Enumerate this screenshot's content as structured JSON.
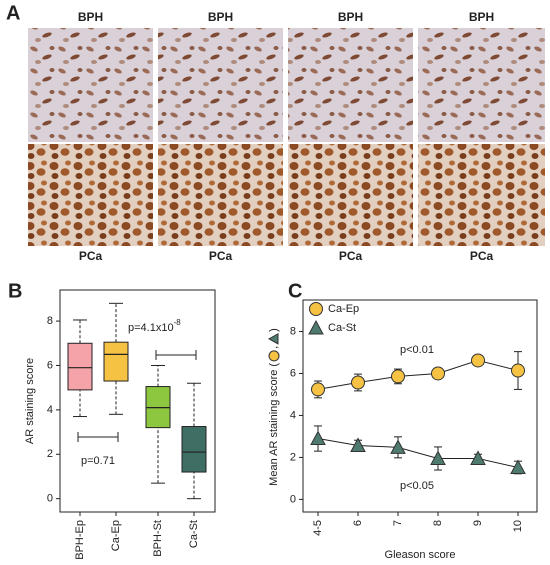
{
  "panel_labels": [
    "A",
    "B",
    "C"
  ],
  "panel_a": {
    "top_labels": [
      "BPH",
      "BPH",
      "BPH",
      "BPH"
    ],
    "bottom_labels": [
      "PCa",
      "PCa",
      "PCa",
      "PCa"
    ]
  },
  "chart_data": [
    {
      "type": "box",
      "ylabel": "AR staining score",
      "categories": [
        "BPH-Ep",
        "Ca-Ep",
        "BPH-St",
        "Ca-St"
      ],
      "colors": [
        "#f4a3a8",
        "#f6c244",
        "#8dc63f",
        "#3f6e65"
      ],
      "boxes": [
        {
          "whisker_low": 3.7,
          "q1": 4.9,
          "median": 5.9,
          "q3": 7.0,
          "whisker_high": 8.05
        },
        {
          "whisker_low": 3.8,
          "q1": 5.3,
          "median": 6.5,
          "q3": 7.05,
          "whisker_high": 8.8
        },
        {
          "whisker_low": 0.7,
          "q1": 3.2,
          "median": 4.1,
          "q3": 5.05,
          "whisker_high": 6.0
        },
        {
          "whisker_low": 0,
          "q1": 1.2,
          "median": 2.1,
          "q3": 3.25,
          "whisker_high": 5.2
        }
      ],
      "annotations": [
        {
          "text": "p=0.71"
        },
        {
          "text": "p=4.1x10",
          "superscript": "-8"
        }
      ],
      "ylim": [
        -0.6,
        9.4
      ],
      "yticks": [
        0,
        2,
        4,
        6,
        8
      ]
    },
    {
      "type": "line",
      "xlabel": "Gleason score",
      "ylabel_parts": [
        "Mean AR staining score (",
        ",",
        ")"
      ],
      "categories": [
        "4-5",
        "6",
        "7",
        "8",
        "9",
        "10"
      ],
      "series": [
        {
          "name": "Ca-Ep",
          "color": "#f6c244",
          "marker": "circle",
          "values": [
            5.24,
            5.57,
            5.86,
            6.0,
            6.62,
            6.14
          ],
          "errors": [
            0.4,
            0.4,
            0.35,
            0.15,
            0.2,
            0.9
          ]
        },
        {
          "name": "Ca-St",
          "color": "#4e7a6f",
          "marker": "triangle",
          "values": [
            2.9,
            2.57,
            2.48,
            1.95,
            1.95,
            1.52
          ],
          "errors": [
            0.6,
            0.25,
            0.5,
            0.55,
            0.2,
            0.3
          ]
        }
      ],
      "annotations": [
        {
          "text": "p<0.01"
        },
        {
          "text": "p<0.05"
        }
      ],
      "ylim": [
        -0.6,
        9.5
      ],
      "yticks": [
        0,
        2,
        4,
        6,
        8
      ]
    }
  ]
}
